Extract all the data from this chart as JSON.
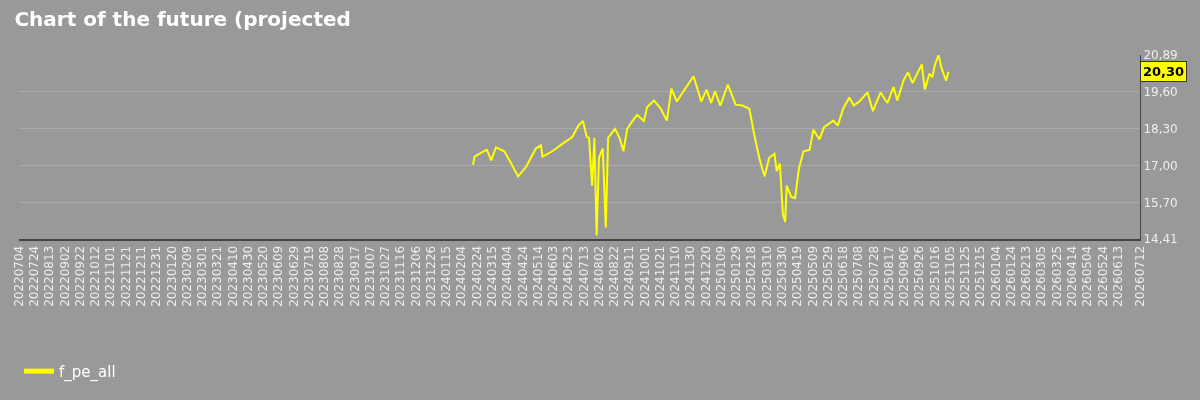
{
  "chart_data": {
    "type": "line",
    "title": "Chart of the future (projected",
    "series": [
      {
        "name": "f_pe_all",
        "color": "#ffff00",
        "x": [
          "2024-02-19",
          "2024-02-21",
          "2024-03-08",
          "2024-03-14",
          "2024-03-20",
          "2024-03-31",
          "2024-04-07",
          "2024-04-18",
          "2024-04-29",
          "2024-05-11",
          "2024-05-18",
          "2024-05-20",
          "2024-06-02",
          "2024-06-09",
          "2024-06-15",
          "2024-06-28",
          "2024-07-06",
          "2024-07-12",
          "2024-07-17",
          "2024-07-20",
          "2024-07-24",
          "2024-07-27",
          "2024-07-30",
          "2024-08-02",
          "2024-08-07",
          "2024-08-11",
          "2024-08-14",
          "2024-08-23",
          "2024-08-29",
          "2024-09-03",
          "2024-09-08",
          "2024-09-15",
          "2024-09-21",
          "2024-09-30",
          "2024-10-04",
          "2024-10-13",
          "2024-10-22",
          "2024-10-30",
          "2024-11-05",
          "2024-11-12",
          "2024-11-21",
          "2024-12-04",
          "2024-12-14",
          "2024-12-21",
          "2024-12-27",
          "2025-01-01",
          "2025-01-08",
          "2025-01-18",
          "2025-01-28",
          "2025-02-06",
          "2025-02-15",
          "2025-02-22",
          "2025-02-28",
          "2025-03-07",
          "2025-03-13",
          "2025-03-20",
          "2025-03-23",
          "2025-03-27",
          "2025-03-31",
          "2025-04-03",
          "2025-04-05",
          "2025-04-11",
          "2025-04-16",
          "2025-04-21",
          "2025-04-27",
          "2025-05-05",
          "2025-05-10",
          "2025-05-18",
          "2025-05-24",
          "2025-06-05",
          "2025-06-11",
          "2025-06-18",
          "2025-06-26",
          "2025-07-02",
          "2025-07-09",
          "2025-07-20",
          "2025-07-27",
          "2025-08-06",
          "2025-08-15",
          "2025-08-23",
          "2025-08-28",
          "2025-09-05",
          "2025-09-11",
          "2025-09-17",
          "2025-09-29",
          "2025-10-03",
          "2025-10-09",
          "2025-10-13",
          "2025-10-16",
          "2025-10-21",
          "2025-10-25",
          "2025-10-31",
          "2025-11-03"
        ],
        "values": [
          17.03,
          17.31,
          17.56,
          17.18,
          17.64,
          17.5,
          17.17,
          16.61,
          16.97,
          17.59,
          17.71,
          17.31,
          17.5,
          17.64,
          17.76,
          18.0,
          18.4,
          18.57,
          18.01,
          17.97,
          16.28,
          17.97,
          14.53,
          17.27,
          17.6,
          14.82,
          17.97,
          18.29,
          17.97,
          17.5,
          18.29,
          18.57,
          18.78,
          18.57,
          19.05,
          19.29,
          19.0,
          18.58,
          19.71,
          19.25,
          19.62,
          20.14,
          19.25,
          19.67,
          19.2,
          19.62,
          19.11,
          19.85,
          19.14,
          19.11,
          19.0,
          18.02,
          17.27,
          16.61,
          17.27,
          17.41,
          16.8,
          17.07,
          15.3,
          15.01,
          16.29,
          15.89,
          15.85,
          16.89,
          17.5,
          17.55,
          18.26,
          17.92,
          18.35,
          18.58,
          18.4,
          19.0,
          19.39,
          19.11,
          19.25,
          19.57,
          18.91,
          19.57,
          19.2,
          19.76,
          19.29,
          19.99,
          20.28,
          19.9,
          20.56,
          19.67,
          20.23,
          20.1,
          20.52,
          20.89,
          20.42,
          19.99,
          20.3
        ]
      }
    ],
    "annotations": [
      "20,30"
    ],
    "xlim": [
      "2022-07-04",
      "2026-07-12"
    ],
    "xticks": [
      {
        "value": "2022-07-04",
        "label": "20220704"
      },
      {
        "value": "2022-07-24",
        "label": "20220724"
      },
      {
        "value": "2022-08-13",
        "label": "20220813"
      },
      {
        "value": "2022-09-02",
        "label": "20220902"
      },
      {
        "value": "2022-09-22",
        "label": "20220922"
      },
      {
        "value": "2022-10-12",
        "label": "20221012"
      },
      {
        "value": "2022-11-01",
        "label": "20221101"
      },
      {
        "value": "2022-11-21",
        "label": "20221121"
      },
      {
        "value": "2022-12-11",
        "label": "20221211"
      },
      {
        "value": "2022-12-31",
        "label": "20221231"
      },
      {
        "value": "2023-01-20",
        "label": "20230120"
      },
      {
        "value": "2023-02-09",
        "label": "20230209"
      },
      {
        "value": "2023-03-01",
        "label": "20230301"
      },
      {
        "value": "2023-03-21",
        "label": "20230321"
      },
      {
        "value": "2023-04-10",
        "label": "20230410"
      },
      {
        "value": "2023-04-30",
        "label": "20230430"
      },
      {
        "value": "2023-05-20",
        "label": "20230520"
      },
      {
        "value": "2023-06-09",
        "label": "20230609"
      },
      {
        "value": "2023-06-29",
        "label": "20230629"
      },
      {
        "value": "2023-07-19",
        "label": "20230719"
      },
      {
        "value": "2023-08-08",
        "label": "20230808"
      },
      {
        "value": "2023-08-28",
        "label": "20230828"
      },
      {
        "value": "2023-09-17",
        "label": "20230917"
      },
      {
        "value": "2023-10-07",
        "label": "20231007"
      },
      {
        "value": "2023-10-27",
        "label": "20231027"
      },
      {
        "value": "2023-11-16",
        "label": "20231116"
      },
      {
        "value": "2023-12-06",
        "label": "20231206"
      },
      {
        "value": "2023-12-26",
        "label": "20231226"
      },
      {
        "value": "2024-01-15",
        "label": "20240115"
      },
      {
        "value": "2024-02-04",
        "label": "20240204"
      },
      {
        "value": "2024-02-24",
        "label": "20240224"
      },
      {
        "value": "2024-03-15",
        "label": "20240315"
      },
      {
        "value": "2024-04-04",
        "label": "20240404"
      },
      {
        "value": "2024-04-24",
        "label": "20240424"
      },
      {
        "value": "2024-05-14",
        "label": "20240514"
      },
      {
        "value": "2024-06-03",
        "label": "20240603"
      },
      {
        "value": "2024-06-23",
        "label": "20240623"
      },
      {
        "value": "2024-07-13",
        "label": "20240713"
      },
      {
        "value": "2024-08-02",
        "label": "20240802"
      },
      {
        "value": "2024-08-22",
        "label": "20240822"
      },
      {
        "value": "2024-09-11",
        "label": "20240911"
      },
      {
        "value": "2024-10-01",
        "label": "20241001"
      },
      {
        "value": "2024-10-21",
        "label": "20241021"
      },
      {
        "value": "2024-11-10",
        "label": "20241110"
      },
      {
        "value": "2024-11-30",
        "label": "20241130"
      },
      {
        "value": "2024-12-20",
        "label": "20241220"
      },
      {
        "value": "2025-01-09",
        "label": "20250109"
      },
      {
        "value": "2025-01-29",
        "label": "20250129"
      },
      {
        "value": "2025-02-18",
        "label": "20250218"
      },
      {
        "value": "2025-03-10",
        "label": "20250310"
      },
      {
        "value": "2025-03-30",
        "label": "20250330"
      },
      {
        "value": "2025-04-19",
        "label": "20250419"
      },
      {
        "value": "2025-05-09",
        "label": "20250509"
      },
      {
        "value": "2025-05-29",
        "label": "20250529"
      },
      {
        "value": "2025-06-18",
        "label": "20250618"
      },
      {
        "value": "2025-07-08",
        "label": "20250708"
      },
      {
        "value": "2025-07-28",
        "label": "20250728"
      },
      {
        "value": "2025-08-17",
        "label": "20250817"
      },
      {
        "value": "2025-09-06",
        "label": "20250906"
      },
      {
        "value": "2025-09-26",
        "label": "20250926"
      },
      {
        "value": "2025-10-16",
        "label": "20251016"
      },
      {
        "value": "2025-11-05",
        "label": "20251105"
      },
      {
        "value": "2025-11-25",
        "label": "20251125"
      },
      {
        "value": "2025-12-15",
        "label": "20251215"
      },
      {
        "value": "2026-01-04",
        "label": "20260104"
      },
      {
        "value": "2026-01-24",
        "label": "20260124"
      },
      {
        "value": "2026-02-13",
        "label": "20260213"
      },
      {
        "value": "2026-03-05",
        "label": "20260305"
      },
      {
        "value": "2026-03-25",
        "label": "20260325"
      },
      {
        "value": "2026-04-14",
        "label": "20260414"
      },
      {
        "value": "2026-05-04",
        "label": "20260504"
      },
      {
        "value": "2026-05-24",
        "label": "20260524"
      },
      {
        "value": "2026-06-13",
        "label": "20260613"
      },
      {
        "value": "2026-07-12",
        "label": "20260712"
      }
    ],
    "ylim": [
      14.41,
      20.89
    ],
    "yticks": [
      {
        "value": 14.41,
        "label": "14,41"
      },
      {
        "value": 15.7,
        "label": "15,70"
      },
      {
        "value": 17.0,
        "label": "17,00"
      },
      {
        "value": 18.3,
        "label": "18,30"
      },
      {
        "value": 19.6,
        "label": "19,60"
      },
      {
        "value": 20.89,
        "label": "20,89"
      }
    ],
    "grid": "y",
    "legend": "bottom left",
    "line_style": "solid",
    "marker": "none"
  }
}
